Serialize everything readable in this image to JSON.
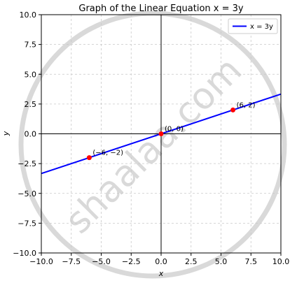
{
  "chart_data": {
    "type": "line",
    "title": "Graph of the Linear Equation x = 3y",
    "xlabel": "x",
    "ylabel": "y",
    "xlim": [
      -10,
      10
    ],
    "ylim": [
      -10,
      10
    ],
    "xticks": [
      -10,
      -7.5,
      -5,
      -2.5,
      0,
      2.5,
      5,
      7.5,
      10
    ],
    "yticks": [
      -10,
      -7.5,
      -5,
      -2.5,
      0,
      2.5,
      5,
      7.5,
      10
    ],
    "xtick_labels": [
      "−10.0",
      "−7.5",
      "−5.0",
      "−2.5",
      "0.0",
      "2.5",
      "5.0",
      "7.5",
      "10.0"
    ],
    "ytick_labels": [
      "−10.0",
      "−7.5",
      "−5.0",
      "−2.5",
      "0.0",
      "2.5",
      "5.0",
      "7.5",
      "10.0"
    ],
    "grid": true,
    "legend_position": "top-right",
    "series": [
      {
        "name": "x = 3y",
        "x": [
          -10,
          10
        ],
        "y": [
          -3.333,
          3.333
        ],
        "color": "#0000ff"
      }
    ],
    "points": [
      {
        "x": -6,
        "y": -2,
        "label": "(−6, −2)",
        "color": "#ff0000"
      },
      {
        "x": 0,
        "y": 0,
        "label": "(0, 0)",
        "color": "#ff0000"
      },
      {
        "x": 6,
        "y": 2,
        "label": "(6, 2)",
        "color": "#ff0000"
      }
    ]
  },
  "watermark": {
    "text": "shaalaa.com",
    "color": "#d9d9d9"
  }
}
